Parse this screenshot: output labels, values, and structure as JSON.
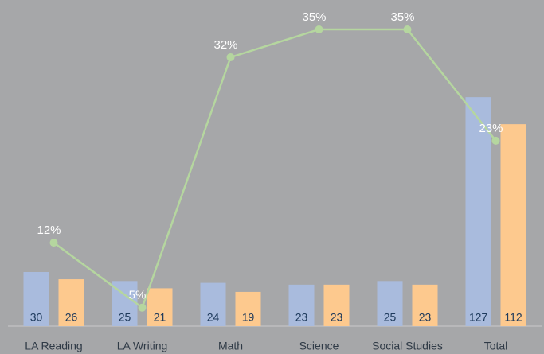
{
  "chart_data": {
    "type": "bar",
    "categories": [
      "LA Reading",
      "LA Writing",
      "Math",
      "Science",
      "Social Studies",
      "Total"
    ],
    "series": [
      {
        "color": "#a9bbdd",
        "values": [
          30,
          25,
          24,
          23,
          25,
          127
        ]
      },
      {
        "color": "#fdc98e",
        "values": [
          26,
          21,
          19,
          23,
          23,
          112
        ]
      },
      {
        "type": "line",
        "axis": "y2",
        "color": "#b5d69f",
        "values": [
          12,
          5,
          32,
          35,
          35,
          23
        ],
        "value_labels": [
          "12%",
          "5%",
          "32%",
          "35%",
          "35%",
          "23%"
        ]
      }
    ],
    "ylim": [
      0,
      180
    ],
    "y2lim": [
      0,
      38
    ]
  }
}
